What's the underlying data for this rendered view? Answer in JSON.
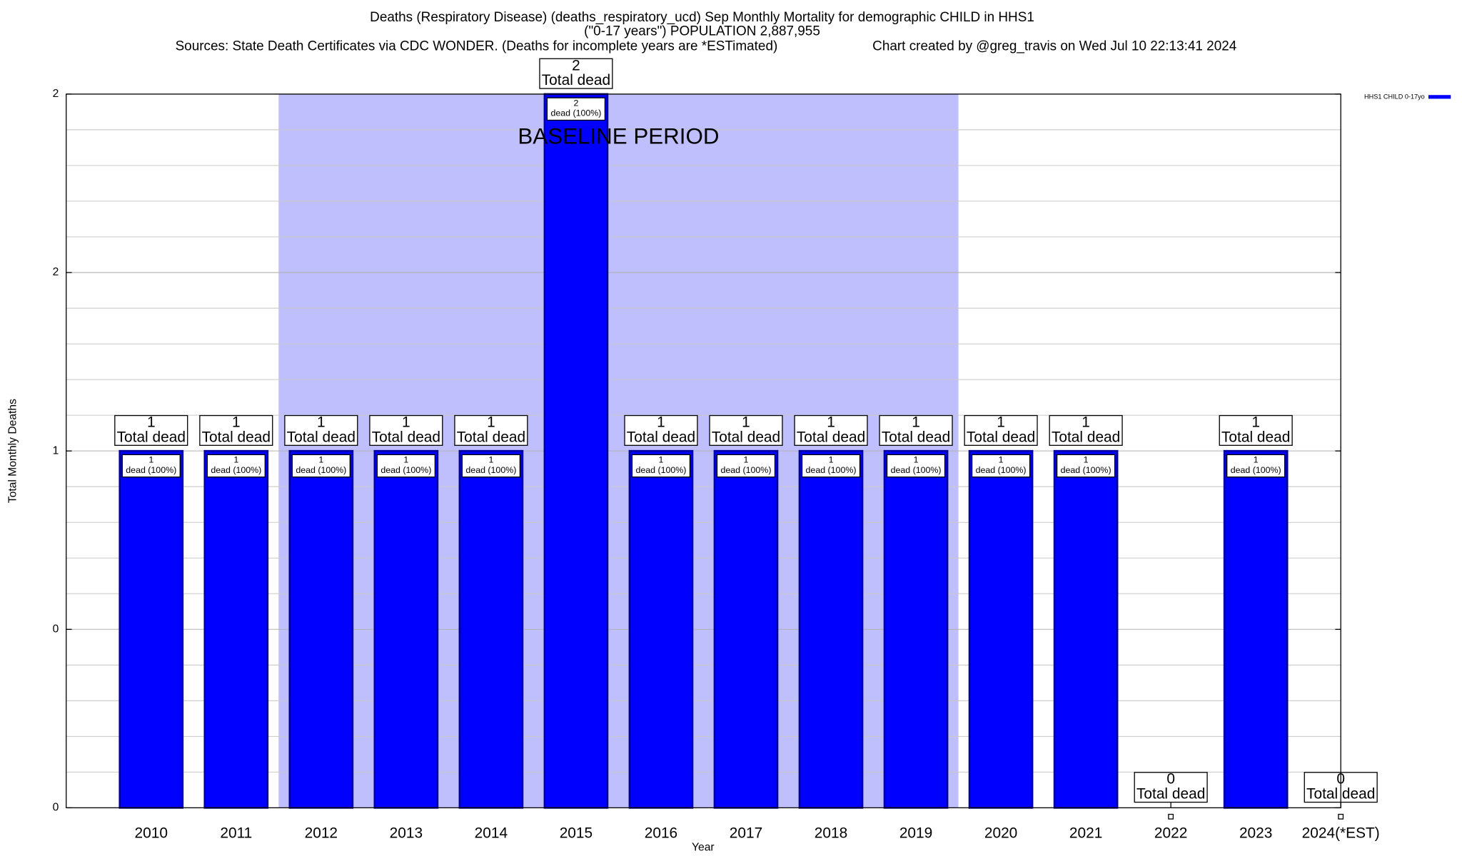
{
  "chart_data": {
    "type": "bar",
    "title": "Deaths (Respiratory Disease) (deaths_respiratory_ucd) Sep Monthly Mortality for demographic CHILD in HHS1",
    "subtitle": "(\"0-17 years\") POPULATION 2,887,955",
    "source": "Sources: State Death Certificates via CDC WONDER. (Deaths for incomplete years are *ESTimated)",
    "credit": "Chart created by @greg_travis on Wed Jul 10 22:13:41 2024",
    "x_label": "Year",
    "y_label": "Total Monthly Deaths",
    "categories": [
      "2010",
      "2011",
      "2012",
      "2013",
      "2014",
      "2015",
      "2016",
      "2017",
      "2018",
      "2019",
      "2020",
      "2021",
      "2022",
      "2023",
      "2024(*EST)"
    ],
    "series": [
      {
        "name": "HHS1 CHILD 0-17yo",
        "color": "#0000ff",
        "values": [
          1,
          1,
          1,
          1,
          1,
          2,
          1,
          1,
          1,
          1,
          1,
          1,
          0,
          1,
          0
        ]
      }
    ],
    "total_label": "Total dead",
    "share_label": "dead (100%)",
    "baseline": {
      "label": "BASELINE PERIOD",
      "start": "2012",
      "end": "2019",
      "color": "#bfbffd"
    },
    "ylim": [
      0,
      2
    ],
    "yticks": [
      0,
      {
        "value": 0.5,
        "label": "0"
      },
      1,
      {
        "value": 1.5,
        "label": "2"
      },
      2
    ],
    "minor_yticks": [
      0.1,
      0.2,
      0.3,
      0.4,
      0.6,
      0.7,
      0.8,
      0.9,
      1.1,
      1.2,
      1.3,
      1.4,
      1.6,
      1.7,
      1.8,
      1.9
    ],
    "grid": true,
    "legend": "right"
  }
}
